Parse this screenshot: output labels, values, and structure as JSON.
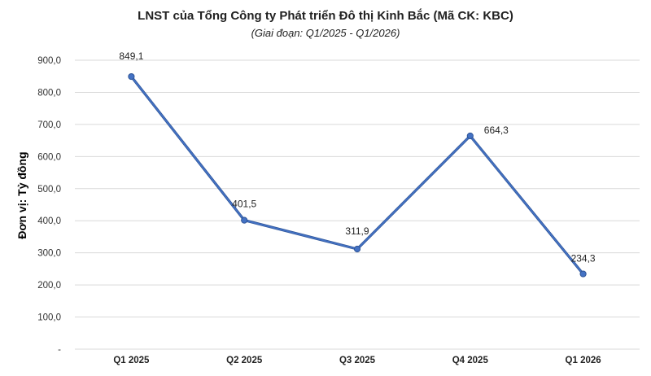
{
  "chart_data": {
    "type": "line",
    "title": "LNST của Tổng Công ty Phát triển Đô thị Kinh Bắc (Mã CK: KBC)",
    "subtitle": "(Giai đoạn: Q1/2025 - Q1/2026)",
    "ylabel": "Đơn vị: Tỷ đồng",
    "xlabel": "",
    "categories": [
      "Q1 2025",
      "Q2 2025",
      "Q3 2025",
      "Q4 2025",
      "Q1 2026"
    ],
    "values": [
      849.1,
      401.5,
      311.9,
      664.3,
      234.3
    ],
    "data_labels": [
      "849,1",
      "401,5",
      "311,9",
      "664,3",
      "234,3"
    ],
    "ylim": [
      0,
      900
    ],
    "yticks": [
      0,
      100,
      200,
      300,
      400,
      500,
      600,
      700,
      800,
      900
    ],
    "ytick_labels": [
      "-",
      "100,0",
      "200,0",
      "300,0",
      "400,0",
      "500,0",
      "600,0",
      "700,0",
      "800,0",
      "900,0"
    ],
    "grid": true,
    "legend": "none",
    "colors": {
      "line": "#4472C4",
      "line_dark": "#2F5597",
      "grid": "#D9D9D9"
    }
  }
}
